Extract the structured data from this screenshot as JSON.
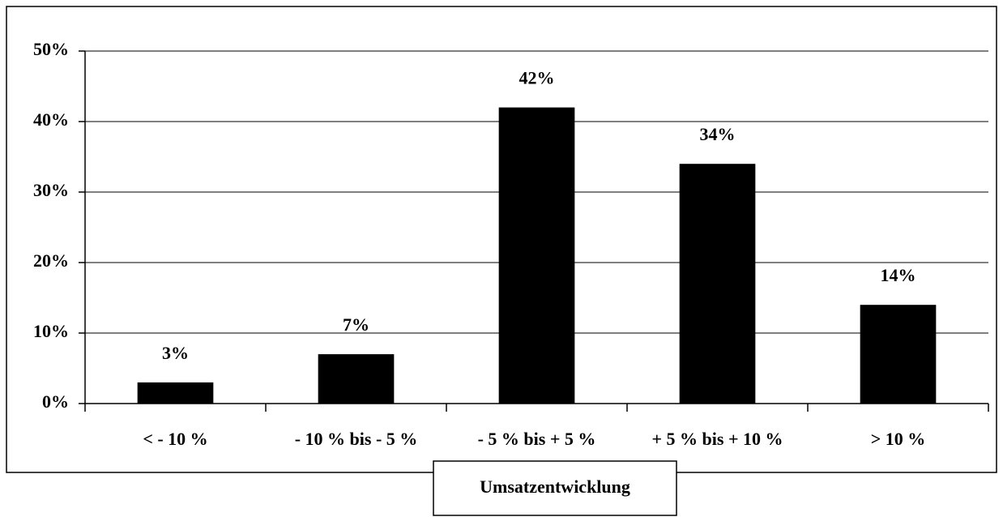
{
  "chart_data": {
    "type": "bar",
    "x_label": "Umsatzentwicklung",
    "categories": [
      "< - 10 %",
      "- 10 % bis - 5 %",
      "- 5 % bis + 5 %",
      "+ 5 % bis + 10 %",
      "> 10 %"
    ],
    "values": [
      3,
      7,
      42,
      34,
      14
    ],
    "value_labels": [
      "3%",
      "7%",
      "42%",
      "34%",
      "14%"
    ],
    "color": "#000000",
    "ylim": [
      0,
      50
    ],
    "yticks": [
      {
        "value": 0,
        "label": "0%"
      },
      {
        "value": 10,
        "label": "10%"
      },
      {
        "value": 20,
        "label": "20%"
      },
      {
        "value": 30,
        "label": "30%"
      },
      {
        "value": 40,
        "label": "40%"
      },
      {
        "value": 50,
        "label": "50%"
      }
    ],
    "grid": true
  }
}
